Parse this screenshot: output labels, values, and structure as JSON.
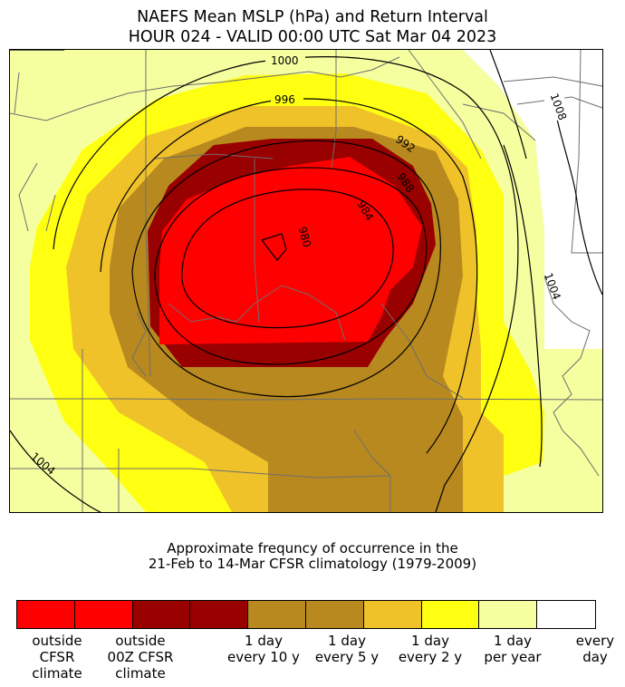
{
  "title": {
    "line1": "NAEFS Mean MSLP (hPa) and Return Interval",
    "line2": "HOUR 024 - VALID 00:00 UTC Sat Mar 04 2023"
  },
  "caption": {
    "line1": "Approximate frequncy of occurrence in the",
    "line2": "21-Feb to 14-Mar CFSR climatology (1979-2009)"
  },
  "contour_labels": [
    "1000",
    "996",
    "992",
    "988",
    "984",
    "980",
    "1008",
    "1004",
    "1004"
  ],
  "colors": {
    "outside_cfsr": "#ff0000",
    "outside_00z": "#990000",
    "ten_year": "#b8891f",
    "five_year": "#f0c22a",
    "two_year": "#ffff12",
    "per_year": "#f5ff9f",
    "every_day": "#ffffff",
    "border": "#6e6e6e",
    "contour": "#000000"
  },
  "colorbar": {
    "swatches": [
      {
        "color": "#ff0000"
      },
      {
        "color": "#ff0000"
      },
      {
        "color": "#990000"
      },
      {
        "color": "#990000"
      },
      {
        "color": "#b8891f"
      },
      {
        "color": "#b8891f"
      },
      {
        "color": "#f0c22a"
      },
      {
        "color": "#ffff12"
      },
      {
        "color": "#f5ff9f"
      },
      {
        "color": "#ffffff"
      }
    ],
    "labels": [
      {
        "text": "outside\nCFSR\nclimate"
      },
      {
        "text": "outside\n00Z CFSR\nclimate"
      },
      {
        "text": "1 day\nevery 10 y"
      },
      {
        "text": "1 day\nevery 5 y"
      },
      {
        "text": "1 day\nevery 2 y"
      },
      {
        "text": "1 day\nper year"
      },
      {
        "text": "every\nday"
      }
    ]
  }
}
